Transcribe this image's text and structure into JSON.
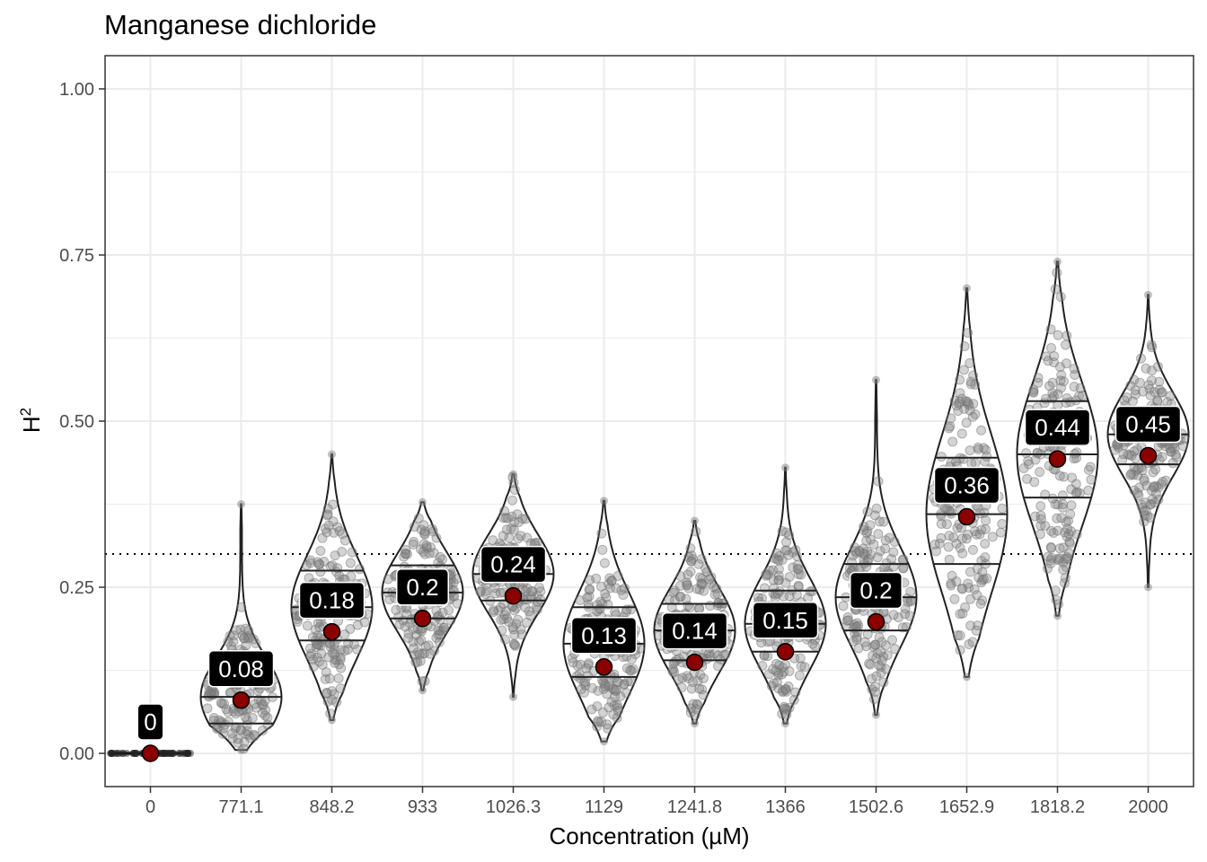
{
  "chart_data": {
    "type": "violin",
    "title": "Manganese dichloride",
    "xlabel": "Concentration (µM)",
    "ylabel": "H",
    "ylabel_superscript": "2",
    "ylim": [
      -0.05,
      1.05
    ],
    "yticks": [
      "0.00",
      "0.25",
      "0.50",
      "0.75",
      "1.00"
    ],
    "ytick_values": [
      0,
      0.25,
      0.5,
      0.75,
      1.0
    ],
    "reference_line": 0.3,
    "grid": true,
    "colors": {
      "mean_point": "#8b0000",
      "points": "#808080",
      "label_bg": "#000000",
      "label_text": "#ffffff"
    },
    "categories": [
      "0",
      "771.1",
      "848.2",
      "933",
      "1026.3",
      "1129",
      "1241.8",
      "1366",
      "1502.6",
      "1652.9",
      "1818.2",
      "2000"
    ],
    "groups": [
      {
        "category": "0",
        "mean": 0,
        "label": "0",
        "min": 0,
        "max": 0,
        "q25": 0,
        "median": 0,
        "q75": 0
      },
      {
        "category": "771.1",
        "mean": 0.08,
        "label": "0.08",
        "min": 0.005,
        "max": 0.375,
        "q25": 0.045,
        "median": 0.085,
        "q75": 0.125
      },
      {
        "category": "848.2",
        "mean": 0.183,
        "label": "0.18",
        "min": 0.05,
        "max": 0.45,
        "q25": 0.17,
        "median": 0.22,
        "q75": 0.275
      },
      {
        "category": "933",
        "mean": 0.203,
        "label": "0.2",
        "min": 0.095,
        "max": 0.378,
        "q25": 0.203,
        "median": 0.242,
        "q75": 0.283
      },
      {
        "category": "1026.3",
        "mean": 0.237,
        "label": "0.24",
        "min": 0.085,
        "max": 0.42,
        "q25": 0.23,
        "median": 0.27,
        "q75": 0.31
      },
      {
        "category": "1129",
        "mean": 0.13,
        "label": "0.13",
        "min": 0.018,
        "max": 0.38,
        "q25": 0.115,
        "median": 0.165,
        "q75": 0.22
      },
      {
        "category": "1241.8",
        "mean": 0.137,
        "label": "0.14",
        "min": 0.045,
        "max": 0.35,
        "q25": 0.14,
        "median": 0.185,
        "q75": 0.225
      },
      {
        "category": "1366",
        "mean": 0.153,
        "label": "0.15",
        "min": 0.045,
        "max": 0.43,
        "q25": 0.153,
        "median": 0.195,
        "q75": 0.245
      },
      {
        "category": "1502.6",
        "mean": 0.198,
        "label": "0.2",
        "min": 0.058,
        "max": 0.562,
        "q25": 0.185,
        "median": 0.235,
        "q75": 0.285
      },
      {
        "category": "1652.9",
        "mean": 0.356,
        "label": "0.36",
        "min": 0.115,
        "max": 0.7,
        "q25": 0.285,
        "median": 0.36,
        "q75": 0.445
      },
      {
        "category": "1818.2",
        "mean": 0.443,
        "label": "0.44",
        "min": 0.207,
        "max": 0.74,
        "q25": 0.385,
        "median": 0.45,
        "q75": 0.53
      },
      {
        "category": "2000",
        "mean": 0.448,
        "label": "0.45",
        "min": 0.25,
        "max": 0.69,
        "q25": 0.435,
        "median": 0.48,
        "q75": 0.52
      }
    ]
  }
}
